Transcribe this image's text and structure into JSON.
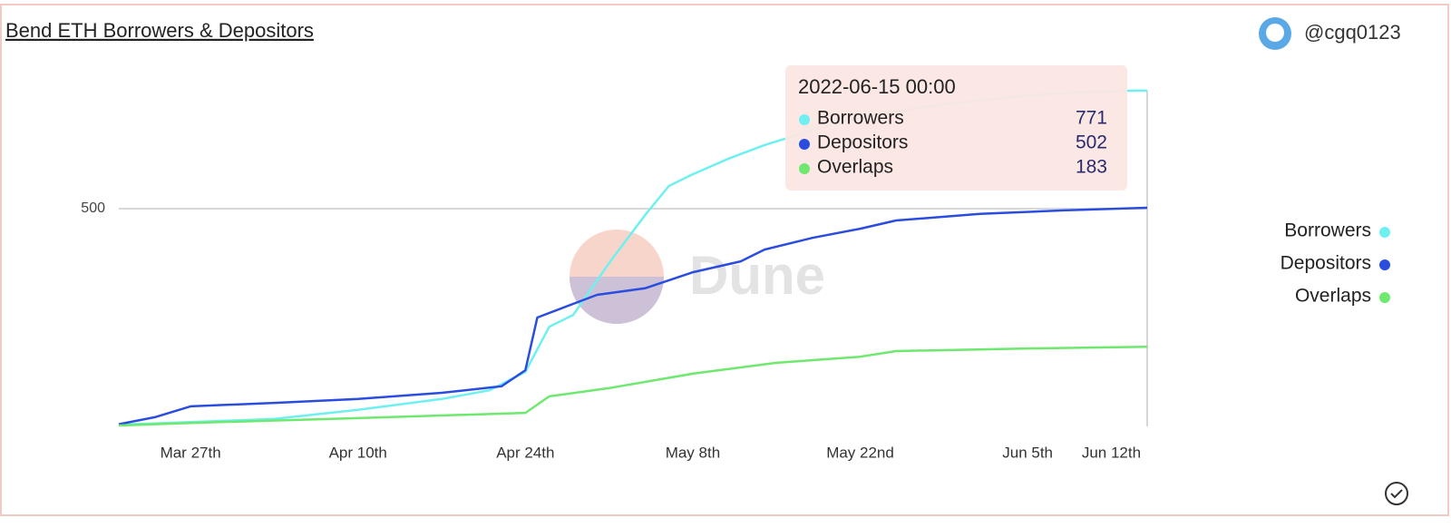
{
  "chart_data": {
    "type": "line",
    "title": "Bend ETH Borrowers & Depositors",
    "author": "@cgq0123",
    "watermark": "Dune",
    "xlim": [
      "2022-03-21",
      "2022-06-15"
    ],
    "xticks": [
      {
        "value": "2022-03-27",
        "label": "Mar 27th"
      },
      {
        "value": "2022-04-10",
        "label": "Apr 10th"
      },
      {
        "value": "2022-04-24",
        "label": "Apr 24th"
      },
      {
        "value": "2022-05-08",
        "label": "May 8th"
      },
      {
        "value": "2022-05-22",
        "label": "May 22nd"
      },
      {
        "value": "2022-06-05",
        "label": "Jun 5th"
      },
      {
        "value": "2022-06-12",
        "label": "Jun 12th"
      }
    ],
    "ylim": [
      0,
      800
    ],
    "yticks": [
      500
    ],
    "grid": true,
    "legend": "right",
    "tooltip": {
      "title": "2022-06-15 00:00"
    },
    "series": [
      {
        "name": "Borrowers",
        "color": "#6ff0f0",
        "x": [
          "2022-03-21",
          "2022-03-27",
          "2022-04-03",
          "2022-04-10",
          "2022-04-17",
          "2022-04-21",
          "2022-04-24",
          "2022-04-26",
          "2022-04-28",
          "2022-05-01",
          "2022-05-04",
          "2022-05-06",
          "2022-05-08",
          "2022-05-11",
          "2022-05-14",
          "2022-05-18",
          "2022-05-22",
          "2022-05-29",
          "2022-06-05",
          "2022-06-10",
          "2022-06-14",
          "2022-06-15"
        ],
        "values": [
          4,
          10,
          17,
          38,
          63,
          83,
          125,
          229,
          256,
          375,
          485,
          552,
          579,
          615,
          646,
          680,
          710,
          740,
          760,
          768,
          771,
          771
        ]
      },
      {
        "name": "Depositors",
        "color": "#2a4de0",
        "x": [
          "2022-03-21",
          "2022-03-24",
          "2022-03-27",
          "2022-04-03",
          "2022-04-10",
          "2022-04-17",
          "2022-04-22",
          "2022-04-24",
          "2022-04-25",
          "2022-04-27",
          "2022-04-30",
          "2022-05-04",
          "2022-05-08",
          "2022-05-12",
          "2022-05-14",
          "2022-05-18",
          "2022-05-22",
          "2022-05-25",
          "2022-06-01",
          "2022-06-08",
          "2022-06-15"
        ],
        "values": [
          5,
          21,
          46,
          54,
          63,
          77,
          92,
          129,
          250,
          271,
          302,
          317,
          354,
          379,
          406,
          433,
          454,
          473,
          488,
          496,
          502
        ]
      },
      {
        "name": "Overlaps",
        "color": "#6ee86e",
        "x": [
          "2022-03-21",
          "2022-03-27",
          "2022-04-10",
          "2022-04-24",
          "2022-04-26",
          "2022-05-01",
          "2022-05-08",
          "2022-05-15",
          "2022-05-22",
          "2022-05-25",
          "2022-06-05",
          "2022-06-15"
        ],
        "values": [
          2,
          8,
          19,
          31,
          69,
          88,
          121,
          146,
          160,
          173,
          179,
          183
        ]
      }
    ]
  }
}
